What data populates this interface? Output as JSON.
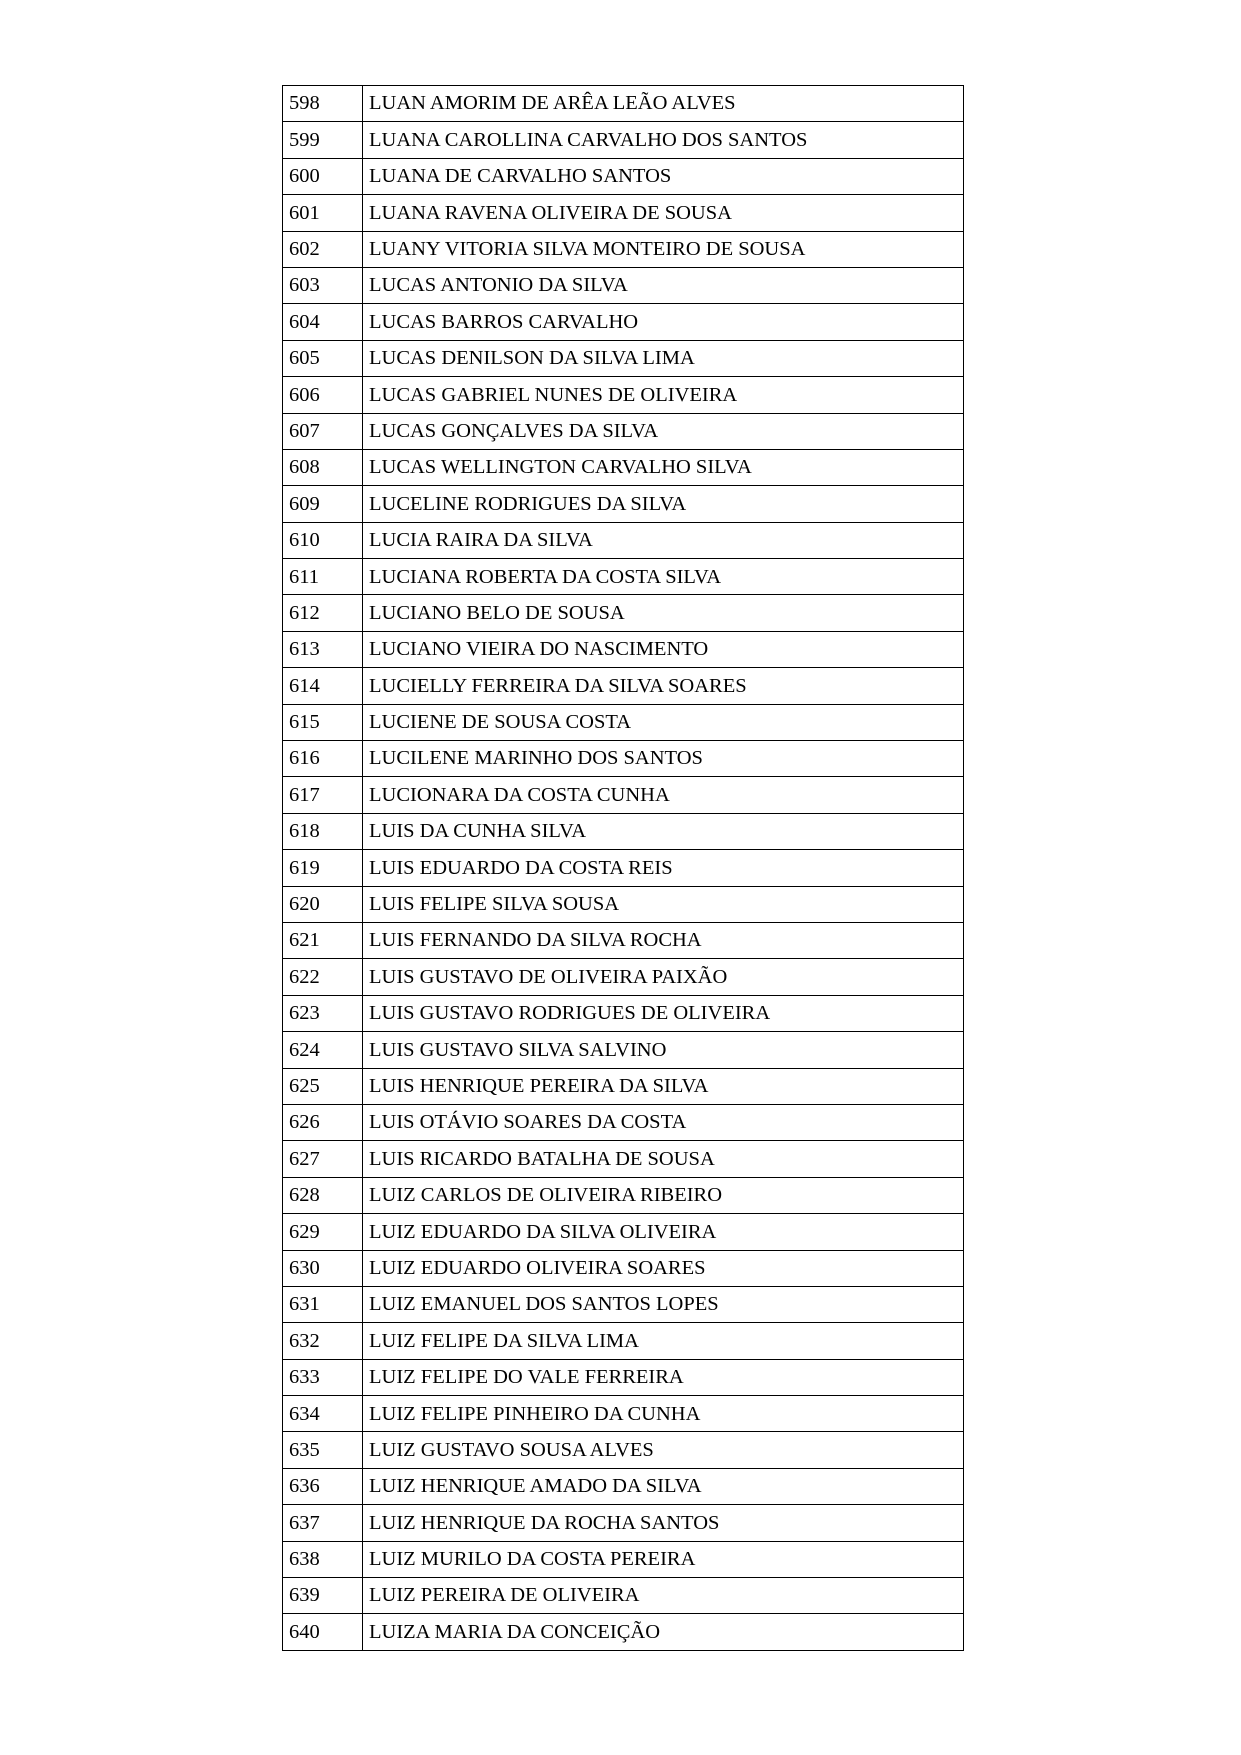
{
  "rows": [
    {
      "num": "598",
      "name": "LUAN AMORIM DE ARÊA LEÃO ALVES"
    },
    {
      "num": "599",
      "name": "LUANA CAROLLINA CARVALHO DOS SANTOS"
    },
    {
      "num": "600",
      "name": "LUANA DE CARVALHO SANTOS"
    },
    {
      "num": "601",
      "name": "LUANA RAVENA OLIVEIRA DE SOUSA"
    },
    {
      "num": "602",
      "name": "LUANY VITORIA SILVA MONTEIRO DE SOUSA"
    },
    {
      "num": "603",
      "name": "LUCAS ANTONIO DA SILVA"
    },
    {
      "num": "604",
      "name": "LUCAS BARROS CARVALHO"
    },
    {
      "num": "605",
      "name": "LUCAS DENILSON DA SILVA LIMA"
    },
    {
      "num": "606",
      "name": "LUCAS GABRIEL NUNES DE OLIVEIRA"
    },
    {
      "num": "607",
      "name": "LUCAS GONÇALVES DA SILVA"
    },
    {
      "num": "608",
      "name": "LUCAS WELLINGTON CARVALHO SILVA"
    },
    {
      "num": "609",
      "name": "LUCELINE RODRIGUES DA SILVA"
    },
    {
      "num": "610",
      "name": "LUCIA RAIRA DA SILVA"
    },
    {
      "num": "611",
      "name": "LUCIANA ROBERTA DA COSTA SILVA"
    },
    {
      "num": "612",
      "name": "LUCIANO BELO DE SOUSA"
    },
    {
      "num": "613",
      "name": "LUCIANO VIEIRA DO NASCIMENTO"
    },
    {
      "num": "614",
      "name": "LUCIELLY FERREIRA DA SILVA SOARES"
    },
    {
      "num": "615",
      "name": "LUCIENE DE SOUSA COSTA"
    },
    {
      "num": "616",
      "name": "LUCILENE MARINHO DOS SANTOS"
    },
    {
      "num": "617",
      "name": "LUCIONARA DA COSTA CUNHA"
    },
    {
      "num": "618",
      "name": "LUIS DA CUNHA SILVA"
    },
    {
      "num": "619",
      "name": "LUIS EDUARDO DA COSTA REIS"
    },
    {
      "num": "620",
      "name": "LUIS FELIPE SILVA SOUSA"
    },
    {
      "num": "621",
      "name": "LUIS FERNANDO DA SILVA ROCHA"
    },
    {
      "num": "622",
      "name": "LUIS GUSTAVO DE OLIVEIRA PAIXÃO"
    },
    {
      "num": "623",
      "name": "LUIS GUSTAVO RODRIGUES DE OLIVEIRA"
    },
    {
      "num": "624",
      "name": "LUIS GUSTAVO SILVA SALVINO"
    },
    {
      "num": "625",
      "name": "LUIS HENRIQUE PEREIRA DA SILVA"
    },
    {
      "num": "626",
      "name": "LUIS OTÁVIO SOARES DA COSTA"
    },
    {
      "num": "627",
      "name": "LUIS RICARDO BATALHA DE SOUSA"
    },
    {
      "num": "628",
      "name": "LUIZ CARLOS DE OLIVEIRA RIBEIRO"
    },
    {
      "num": "629",
      "name": "LUIZ EDUARDO DA SILVA OLIVEIRA"
    },
    {
      "num": "630",
      "name": "LUIZ EDUARDO OLIVEIRA SOARES"
    },
    {
      "num": "631",
      "name": "LUIZ EMANUEL DOS SANTOS LOPES"
    },
    {
      "num": "632",
      "name": "LUIZ FELIPE DA SILVA LIMA"
    },
    {
      "num": "633",
      "name": "LUIZ FELIPE DO VALE FERREIRA"
    },
    {
      "num": "634",
      "name": "LUIZ FELIPE PINHEIRO DA CUNHA"
    },
    {
      "num": "635",
      "name": "LUIZ GUSTAVO SOUSA ALVES"
    },
    {
      "num": "636",
      "name": "LUIZ HENRIQUE AMADO DA SILVA"
    },
    {
      "num": "637",
      "name": "LUIZ HENRIQUE DA ROCHA SANTOS"
    },
    {
      "num": "638",
      "name": "LUIZ MURILO DA COSTA PEREIRA"
    },
    {
      "num": "639",
      "name": "LUIZ PEREIRA DE OLIVEIRA"
    },
    {
      "num": "640",
      "name": "LUIZA MARIA DA CONCEIÇÃO"
    }
  ]
}
